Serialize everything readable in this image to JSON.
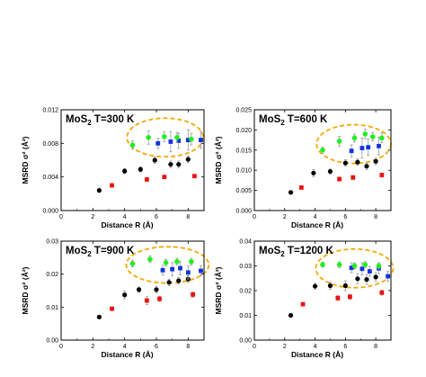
{
  "colors": {
    "black_series": "#000000",
    "red_series": "#ee1111",
    "blue_series": "#1133dd",
    "green_series": "#22ee22",
    "ellipse": "#f5a800",
    "error_bar": "#999999"
  },
  "chart_data": [
    {
      "type": "scatter",
      "title_main": "MoS",
      "title_sub": "2",
      "title_rest": " T=300 K",
      "xlabel": "Distance R (Å)",
      "ylabel": "MSRD σ² (Å²)",
      "xlim": [
        0,
        9
      ],
      "ylim": [
        0,
        0.012
      ],
      "xticks": [
        "0",
        "2",
        "4",
        "6",
        "8"
      ],
      "xtick_values": [
        0,
        2,
        4,
        6,
        8
      ],
      "yticks": [
        "0.000",
        "0.004",
        "0.008",
        "0.012"
      ],
      "ytick_values": [
        0,
        0.004,
        0.008,
        0.012
      ],
      "highlight_ellipse": {
        "x_center": 6.55,
        "y_center": 0.0087,
        "x_radius": 2.4,
        "y_radius": 0.0023
      },
      "series": [
        {
          "color": "black",
          "x": [
            2.4,
            4.0,
            5.0,
            5.9,
            6.9,
            7.4,
            8.0
          ],
          "y": [
            0.0024,
            0.0047,
            0.0049,
            0.006,
            0.0055,
            0.0055,
            0.0061
          ],
          "err": [
            0.0001,
            0.0003,
            0.0003,
            0.0004,
            0.0004,
            0.0004,
            0.0004
          ]
        },
        {
          "color": "red",
          "x": [
            3.2,
            5.4,
            6.5,
            8.4
          ],
          "y": [
            0.003,
            0.0037,
            0.004,
            0.0041
          ],
          "err": [
            0.0001,
            0.0002,
            0.0002,
            0.0002
          ]
        },
        {
          "color": "blue",
          "x": [
            6.1,
            6.9,
            7.4,
            8.0,
            8.8
          ],
          "y": [
            0.008,
            0.0082,
            0.0083,
            0.0084,
            0.0084
          ],
          "err": [
            0.0006,
            0.0012,
            0.0009,
            0.0012,
            0.001
          ]
        },
        {
          "color": "green",
          "x": [
            4.5,
            5.5,
            6.5,
            7.3,
            8.2
          ],
          "y": [
            0.0078,
            0.0087,
            0.0088,
            0.0087,
            0.0085
          ],
          "err": [
            0.0005,
            0.0008,
            0.0006,
            0.0006,
            0.0007
          ]
        }
      ]
    },
    {
      "type": "scatter",
      "title_main": "MoS",
      "title_sub": "2",
      "title_rest": " T=600 K",
      "xlabel": "Distance R (Å)",
      "ylabel": "MSRD σ² (Å²)",
      "xlim": [
        0,
        9
      ],
      "ylim": [
        0,
        0.025
      ],
      "xticks": [
        "0",
        "2",
        "4",
        "6",
        "8"
      ],
      "xtick_values": [
        0,
        2,
        4,
        6,
        8
      ],
      "yticks": [
        "0.000",
        "0.005",
        "0.010",
        "0.015",
        "0.020",
        "0.025"
      ],
      "ytick_values": [
        0,
        0.005,
        0.01,
        0.015,
        0.02,
        0.025
      ],
      "highlight_ellipse": {
        "x_center": 6.55,
        "y_center": 0.0165,
        "x_radius": 2.45,
        "y_radius": 0.0048
      },
      "series": [
        {
          "color": "black",
          "x": [
            2.4,
            3.9,
            5.0,
            6.0,
            6.8,
            7.4,
            8.0
          ],
          "y": [
            0.0045,
            0.0093,
            0.0097,
            0.0118,
            0.012,
            0.011,
            0.0122
          ],
          "err": [
            0.0002,
            0.0009,
            0.0006,
            0.0008,
            0.0008,
            0.0008,
            0.0008
          ]
        },
        {
          "color": "red",
          "x": [
            3.1,
            5.6,
            6.5,
            8.4
          ],
          "y": [
            0.0057,
            0.0078,
            0.0082,
            0.0088
          ],
          "err": [
            0.0003,
            0.0005,
            0.0005,
            0.0005
          ]
        },
        {
          "color": "blue",
          "x": [
            6.4,
            7.1,
            7.5,
            8.2
          ],
          "y": [
            0.0148,
            0.0155,
            0.0157,
            0.016
          ],
          "err": [
            0.0015,
            0.0025,
            0.002,
            0.0022
          ]
        },
        {
          "color": "green",
          "x": [
            4.5,
            5.6,
            6.6,
            7.3,
            7.8,
            8.4
          ],
          "y": [
            0.015,
            0.0172,
            0.018,
            0.019,
            0.0183,
            0.018
          ],
          "err": [
            0.0008,
            0.0012,
            0.001,
            0.0012,
            0.001,
            0.0012
          ]
        }
      ]
    },
    {
      "type": "scatter",
      "title_main": "MoS",
      "title_sub": "2",
      "title_rest": " T=900 K",
      "xlabel": "Distance R (Å)",
      "ylabel": "MSRD σ² (Å²)",
      "xlim": [
        0,
        9
      ],
      "ylim": [
        0,
        0.03
      ],
      "xticks": [
        "0",
        "2",
        "4",
        "6",
        "8"
      ],
      "xtick_values": [
        0,
        2,
        4,
        6,
        8
      ],
      "yticks": [
        "0.00",
        "0.01",
        "0.02",
        "0.03"
      ],
      "ytick_values": [
        0,
        0.01,
        0.02,
        0.03
      ],
      "highlight_ellipse": {
        "x_center": 6.7,
        "y_center": 0.0228,
        "x_radius": 2.6,
        "y_radius": 0.0055
      },
      "series": [
        {
          "color": "black",
          "x": [
            2.4,
            4.0,
            4.9,
            6.0,
            6.8,
            7.4,
            8.0
          ],
          "y": [
            0.007,
            0.0137,
            0.0153,
            0.0153,
            0.0175,
            0.018,
            0.0185
          ],
          "err": [
            0.0003,
            0.0012,
            0.0008,
            0.001,
            0.001,
            0.001,
            0.001
          ]
        },
        {
          "color": "red",
          "x": [
            3.2,
            5.4,
            6.2,
            8.3
          ],
          "y": [
            0.0095,
            0.012,
            0.0125,
            0.0138
          ],
          "err": [
            0.0004,
            0.0012,
            0.0008,
            0.0008
          ]
        },
        {
          "color": "blue",
          "x": [
            6.4,
            7.0,
            7.5,
            8.0,
            8.8
          ],
          "y": [
            0.0212,
            0.0215,
            0.0218,
            0.0205,
            0.021
          ],
          "err": [
            0.0015,
            0.002,
            0.002,
            0.002,
            0.0015
          ]
        },
        {
          "color": "green",
          "x": [
            4.5,
            5.6,
            6.6,
            7.3,
            8.2
          ],
          "y": [
            0.0232,
            0.0245,
            0.0235,
            0.0238,
            0.0238
          ],
          "err": [
            0.001,
            0.001,
            0.001,
            0.001,
            0.001
          ]
        }
      ]
    },
    {
      "type": "scatter",
      "title_main": "MoS",
      "title_sub": "2",
      "title_rest": " T=1200 K",
      "xlabel": "Distance R (Å)",
      "ylabel": "MSRD σ² (Å²)",
      "xlim": [
        0,
        9
      ],
      "ylim": [
        0,
        0.04
      ],
      "xticks": [
        "0",
        "2",
        "4",
        "6",
        "8"
      ],
      "xtick_values": [
        0,
        2,
        4,
        6,
        8
      ],
      "yticks": [
        "0.00",
        "0.01",
        "0.02",
        "0.03",
        "0.04"
      ],
      "ytick_values": [
        0,
        0.01,
        0.02,
        0.03,
        0.04
      ],
      "highlight_ellipse": {
        "x_center": 6.6,
        "y_center": 0.029,
        "x_radius": 2.55,
        "y_radius": 0.0078
      },
      "series": [
        {
          "color": "black",
          "x": [
            2.4,
            4.0,
            5.0,
            6.0,
            6.8,
            7.4,
            8.0
          ],
          "y": [
            0.01,
            0.0218,
            0.022,
            0.022,
            0.0248,
            0.0245,
            0.0255
          ],
          "err": [
            0.0005,
            0.0012,
            0.0015,
            0.002,
            0.002,
            0.002,
            0.0018
          ]
        },
        {
          "color": "red",
          "x": [
            3.2,
            5.5,
            6.3,
            8.4
          ],
          "y": [
            0.0145,
            0.017,
            0.0175,
            0.0192
          ],
          "err": [
            0.0006,
            0.001,
            0.001,
            0.001
          ]
        },
        {
          "color": "blue",
          "x": [
            6.4,
            7.1,
            7.6,
            8.2,
            8.8
          ],
          "y": [
            0.0292,
            0.0288,
            0.0278,
            0.029,
            0.0258
          ],
          "err": [
            0.002,
            0.0025,
            0.002,
            0.0022,
            0.002
          ]
        },
        {
          "color": "green",
          "x": [
            4.5,
            5.6,
            6.6,
            7.3,
            8.2
          ],
          "y": [
            0.0305,
            0.0305,
            0.03,
            0.0305,
            0.03
          ],
          "err": [
            0.001,
            0.0012,
            0.0012,
            0.0012,
            0.0012
          ]
        }
      ]
    }
  ]
}
